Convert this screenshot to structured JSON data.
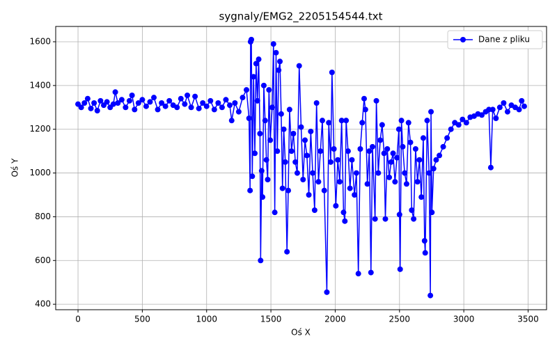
{
  "chart_data": {
    "type": "line",
    "title": "sygnaly/EMG2_2205154544.txt",
    "xlabel": "Oś X",
    "ylabel": "Oś Y",
    "x": [
      0,
      25,
      50,
      75,
      100,
      125,
      150,
      175,
      200,
      225,
      250,
      275,
      290,
      310,
      340,
      370,
      400,
      420,
      440,
      470,
      500,
      530,
      560,
      590,
      620,
      650,
      680,
      710,
      740,
      770,
      800,
      830,
      850,
      880,
      910,
      940,
      970,
      1000,
      1030,
      1060,
      1090,
      1120,
      1150,
      1180,
      1195,
      1220,
      1250,
      1280,
      1310,
      1330,
      1338,
      1342,
      1348,
      1355,
      1365,
      1375,
      1385,
      1395,
      1405,
      1415,
      1420,
      1428,
      1435,
      1445,
      1455,
      1465,
      1475,
      1485,
      1495,
      1510,
      1520,
      1530,
      1540,
      1550,
      1560,
      1570,
      1580,
      1590,
      1600,
      1612,
      1625,
      1635,
      1645,
      1660,
      1675,
      1690,
      1705,
      1720,
      1735,
      1750,
      1765,
      1780,
      1795,
      1810,
      1825,
      1840,
      1855,
      1870,
      1885,
      1900,
      1915,
      1935,
      1950,
      1965,
      1975,
      1990,
      2005,
      2020,
      2035,
      2050,
      2065,
      2075,
      2085,
      2100,
      2115,
      2130,
      2150,
      2165,
      2180,
      2195,
      2210,
      2225,
      2235,
      2250,
      2265,
      2278,
      2290,
      2310,
      2320,
      2335,
      2350,
      2365,
      2380,
      2390,
      2405,
      2420,
      2435,
      2450,
      2465,
      2480,
      2495,
      2500,
      2505,
      2515,
      2525,
      2540,
      2555,
      2570,
      2585,
      2595,
      2610,
      2625,
      2640,
      2655,
      2670,
      2685,
      2695,
      2700,
      2715,
      2730,
      2740,
      2745,
      2752,
      2765,
      2785,
      2810,
      2840,
      2870,
      2900,
      2930,
      2960,
      2990,
      3020,
      3050,
      3080,
      3110,
      3140,
      3170,
      3195,
      3210,
      3225,
      3250,
      3280,
      3310,
      3340,
      3370,
      3400,
      3430,
      3450,
      3470
    ],
    "series": [
      {
        "name": "Dane z pliku",
        "color": "#0000ff",
        "values": [
          1315,
          1300,
          1320,
          1340,
          1295,
          1320,
          1285,
          1330,
          1310,
          1325,
          1300,
          1315,
          1370,
          1320,
          1335,
          1300,
          1330,
          1355,
          1290,
          1320,
          1335,
          1305,
          1325,
          1345,
          1290,
          1320,
          1305,
          1330,
          1310,
          1300,
          1340,
          1315,
          1355,
          1300,
          1350,
          1295,
          1320,
          1305,
          1330,
          1290,
          1320,
          1300,
          1335,
          1310,
          1240,
          1320,
          1280,
          1345,
          1380,
          1250,
          920,
          1600,
          1610,
          985,
          1440,
          1090,
          1500,
          1330,
          1520,
          1180,
          600,
          1010,
          890,
          1400,
          1240,
          1060,
          970,
          1380,
          1150,
          1300,
          1590,
          820,
          1550,
          1100,
          1470,
          1510,
          1270,
          930,
          1200,
          1050,
          640,
          920,
          1290,
          1100,
          1180,
          1050,
          1000,
          1490,
          1210,
          970,
          1150,
          1080,
          900,
          1190,
          1000,
          830,
          1320,
          960,
          1100,
          1240,
          920,
          455,
          1230,
          1050,
          1460,
          1110,
          850,
          1060,
          960,
          1240,
          820,
          780,
          1240,
          1100,
          930,
          1060,
          900,
          1000,
          540,
          1110,
          1230,
          1340,
          1290,
          950,
          1100,
          545,
          1120,
          790,
          1330,
          1000,
          1150,
          1220,
          1090,
          790,
          1110,
          980,
          1050,
          1090,
          960,
          1070,
          1200,
          810,
          560,
          1240,
          1120,
          1000,
          950,
          1230,
          1140,
          830,
          790,
          1110,
          960,
          1060,
          890,
          1160,
          690,
          635,
          1240,
          1000,
          440,
          1280,
          820,
          1020,
          1060,
          1080,
          1120,
          1160,
          1200,
          1230,
          1220,
          1245,
          1230,
          1255,
          1260,
          1270,
          1265,
          1280,
          1290,
          1025,
          1290,
          1250,
          1300,
          1320,
          1280,
          1310,
          1300,
          1290,
          1330,
          1305
        ]
      }
    ],
    "xlim": [
      -173.5,
      3643.5
    ],
    "xticks": [
      0,
      500,
      1000,
      1500,
      2000,
      2500,
      3000,
      3500
    ],
    "ylim": [
      375,
      1670
    ],
    "yticks": [
      400,
      600,
      800,
      1000,
      1200,
      1400,
      1600
    ],
    "grid": true,
    "legend": "upper right"
  }
}
